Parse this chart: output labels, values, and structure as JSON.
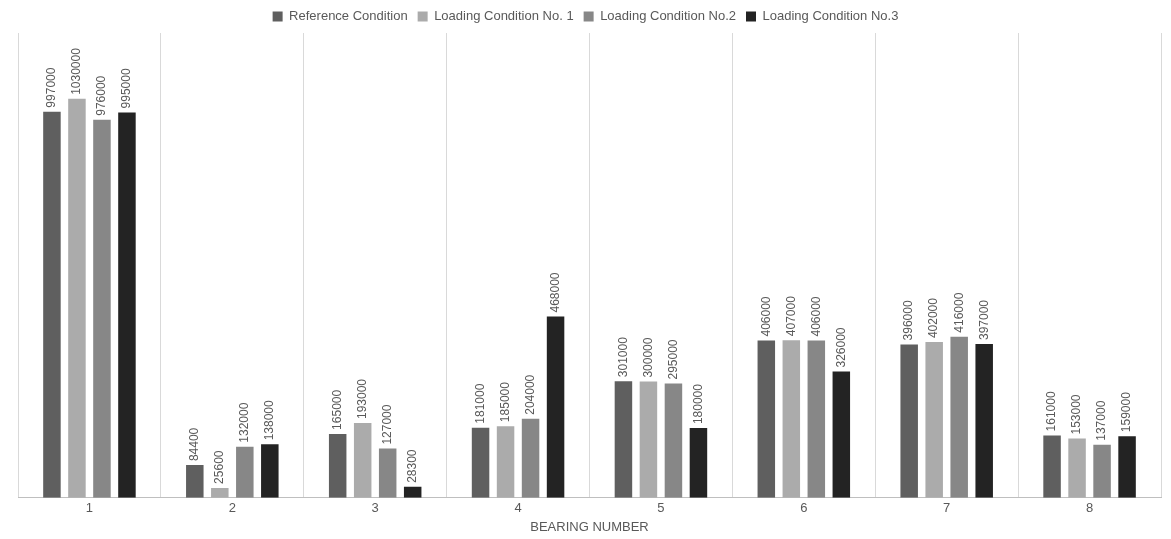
{
  "chart_data": {
    "type": "bar",
    "xlabel": "BEARING NUMBER",
    "categories": [
      "1",
      "2",
      "3",
      "4",
      "5",
      "6",
      "7",
      "8"
    ],
    "series": [
      {
        "name": "Reference Condition",
        "color": "#5f5f5f",
        "values": [
          997000,
          84400,
          165000,
          181000,
          301000,
          406000,
          396000,
          161000
        ]
      },
      {
        "name": "Loading Condition No. 1",
        "color": "#ababab",
        "values": [
          1030000,
          25600,
          193000,
          185000,
          300000,
          407000,
          402000,
          153000
        ]
      },
      {
        "name": "Loading Condition No.2",
        "color": "#878787",
        "values": [
          976000,
          132000,
          127000,
          204000,
          295000,
          406000,
          416000,
          137000
        ]
      },
      {
        "name": "Loading Condition No.3",
        "color": "#232323",
        "values": [
          995000,
          138000,
          28300,
          468000,
          180000,
          326000,
          397000,
          159000
        ]
      }
    ],
    "data_labels": true,
    "grid": "x",
    "legend": "top",
    "tick_labels": "x"
  }
}
